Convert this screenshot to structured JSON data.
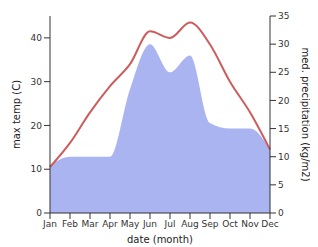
{
  "chart_data": {
    "type": "line",
    "x_label": "date (month)",
    "y_label": "max temp (C)",
    "y2_label": "med. precipitation (kg/m2)",
    "categories": [
      "Jan",
      "Feb",
      "Mar",
      "Apr",
      "May",
      "Jun",
      "Jul",
      "Aug",
      "Sep",
      "Oct",
      "Nov",
      "Dec"
    ],
    "ylim": [
      0,
      45
    ],
    "yticks": [
      0,
      10,
      20,
      30,
      40
    ],
    "y2lim": [
      0,
      35
    ],
    "y2ticks": [
      0,
      5,
      10,
      15,
      20,
      25,
      30,
      35
    ],
    "grid": false,
    "series": [
      {
        "type": "area",
        "axis": "y2",
        "color": "#aab4f0",
        "values": [
          8.5,
          10,
          10,
          10,
          22,
          30,
          25,
          28,
          16,
          15,
          15,
          11.3
        ]
      },
      {
        "type": "line",
        "axis": "y",
        "color": "#cd5c5c",
        "values": [
          10.5,
          16,
          23,
          29,
          34,
          41.5,
          40,
          43.5,
          38.5,
          30,
          23,
          14.5
        ]
      }
    ]
  }
}
